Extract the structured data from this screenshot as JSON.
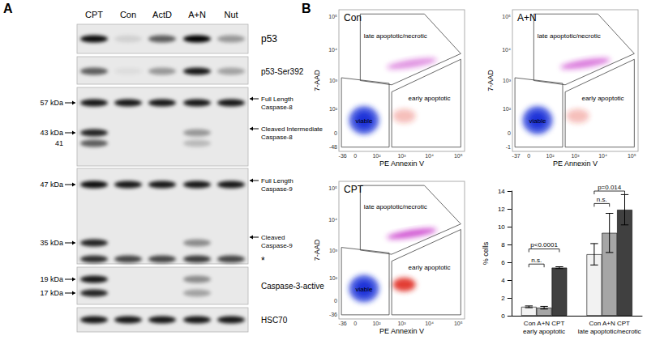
{
  "figure": {
    "panel_labels": [
      "A",
      "B"
    ],
    "blot": {
      "lanes": [
        "CPT",
        "Con",
        "ActD",
        "A+N",
        "Nut"
      ],
      "rows": [
        {
          "left_labels": [],
          "right_labels": [
            [
              "p53"
            ]
          ],
          "bands": [
            [
              0.95,
              0.1,
              0.6,
              1,
              0.35
            ]
          ]
        },
        {
          "left_labels": [],
          "right_labels": [
            [
              "p53-Ser392"
            ]
          ],
          "bands": [
            [
              0.6,
              0.05,
              0.35,
              0.9,
              0.3
            ]
          ]
        },
        {
          "left_labels": [
            "57 kDa",
            "43 kDa",
            "41"
          ],
          "right_labels": [
            [
              "Full Length",
              "Caspase-8"
            ],
            [
              "Cleaved Intermediate",
              "Caspase-8"
            ]
          ],
          "bands": [
            [
              0.9,
              0.9,
              0.9,
              0.9,
              0.9
            ],
            [
              0.85,
              0,
              0,
              0.35,
              0
            ],
            [
              0.6,
              0,
              0,
              0.2,
              0
            ]
          ]
        },
        {
          "left_labels": [
            "47 kDa",
            "35 kDa"
          ],
          "right_labels": [
            [
              "Full Length",
              "Caspase-9"
            ],
            [
              "Cleaved",
              "Caspase-9"
            ],
            [
              "*"
            ]
          ],
          "bands": [
            [
              0.95,
              0.9,
              0.9,
              0.9,
              0.9
            ],
            [
              0.85,
              0,
              0,
              0.4,
              0
            ],
            [
              0.8,
              0.7,
              0.7,
              0.75,
              0.7
            ]
          ]
        },
        {
          "left_labels": [
            "19 kDa",
            "17 kDa"
          ],
          "right_labels": [
            [
              "Caspase-3-active"
            ]
          ],
          "bands": [
            [
              0.9,
              0,
              0,
              0.4,
              0
            ],
            [
              0.85,
              0,
              0,
              0.3,
              0
            ]
          ]
        },
        {
          "left_labels": [],
          "right_labels": [
            [
              "HSC70"
            ]
          ],
          "bands": [
            [
              0.9,
              0.9,
              0.9,
              0.9,
              0.9
            ]
          ]
        }
      ]
    },
    "flow": {
      "x_label": "PE Annexin V",
      "y_label": "7-AAD",
      "gates": [
        "late apoptotic/necrotic",
        "early apoptotic",
        "viable"
      ],
      "gate_colors": [
        "#c21fc4",
        "#e0281e",
        "#1a33d8"
      ],
      "plots": [
        {
          "title": "Con",
          "xticks": [
            "-36",
            "0",
            "10²",
            "10³",
            "10⁴",
            "10⁵"
          ],
          "yticks": [
            "-48",
            "0",
            "10²",
            "10³",
            "10⁴",
            "10⁵"
          ],
          "density": [
            0.5,
            0.3,
            1
          ]
        },
        {
          "title": "A+N",
          "xticks": [
            "-37",
            "0",
            "10²",
            "10³",
            "10⁴",
            "10⁵"
          ],
          "yticks": [
            "-1",
            "0",
            "10²",
            "10³",
            "10⁴",
            "10⁵"
          ],
          "density": [
            0.6,
            0.3,
            1
          ]
        },
        {
          "title": "CPT",
          "xticks": [
            "-36",
            "0",
            "10²",
            "10³",
            "10⁴",
            "10⁵"
          ],
          "yticks": [
            "-36",
            "0",
            "10²",
            "10³",
            "10⁴",
            "10⁵"
          ],
          "density": [
            0.75,
            0.9,
            1
          ]
        }
      ]
    }
  },
  "chart_data": {
    "type": "bar",
    "y_label": "% cells",
    "categories": [
      "early apoptotic",
      "late apoptotic/necrotic"
    ],
    "series": [
      {
        "name": "Con",
        "color": "#f2f2f2",
        "values": [
          1,
          6.9
        ],
        "errors": [
          0.1,
          1.2
        ]
      },
      {
        "name": "A+N",
        "color": "#a6a6a6",
        "values": [
          0.9,
          9.3
        ],
        "errors": [
          0.15,
          2.2
        ]
      },
      {
        "name": "CPT",
        "color": "#404040",
        "values": [
          5.4,
          11.9
        ],
        "errors": [
          0.1,
          1.7
        ]
      }
    ],
    "ylim": [
      0,
      14
    ],
    "yticks": [
      0,
      2,
      4,
      6,
      8,
      10,
      12,
      14
    ],
    "grid": false,
    "annotations": [
      {
        "text": "p<0.0001",
        "category": 0,
        "from": "Con",
        "to": "CPT",
        "y": 7.5
      },
      {
        "text": "n.s.",
        "category": 0,
        "from": "Con",
        "to": "A+N",
        "y": 5.8
      },
      {
        "text": "p=0.014",
        "category": 1,
        "from": "Con",
        "to": "CPT",
        "y": 14
      },
      {
        "text": "n.s.",
        "category": 1,
        "from": "Con",
        "to": "A+N",
        "y": 12.6
      }
    ]
  }
}
